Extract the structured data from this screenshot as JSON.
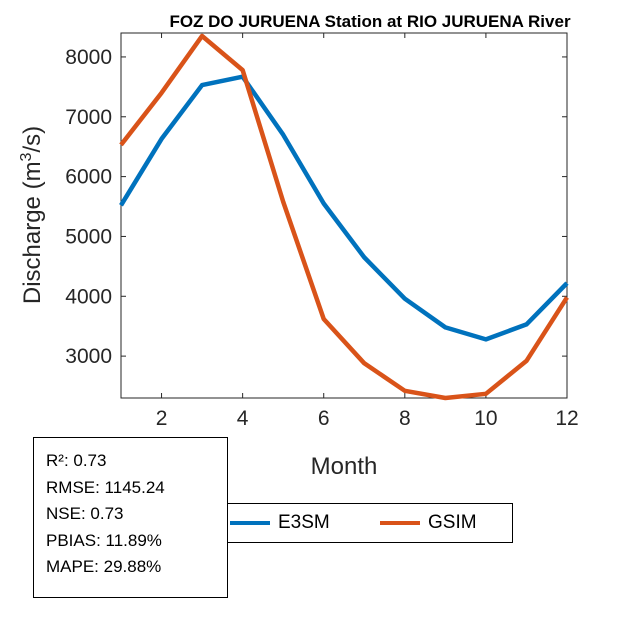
{
  "chart_data": {
    "type": "line",
    "title": "FOZ DO JURUENA  Station at  RIO JURUENA  River",
    "xlabel": "Month",
    "ylabel": "Discharge (m³/s)",
    "ylabel_parts": {
      "pre": "Discharge (m",
      "sup": "3",
      "post": "/s)"
    },
    "xlim": [
      1,
      12
    ],
    "ylim": [
      2300,
      8400
    ],
    "xticks": [
      2,
      4,
      6,
      8,
      10,
      12
    ],
    "yticks": [
      3000,
      4000,
      5000,
      6000,
      7000,
      8000
    ],
    "grid": false,
    "x": [
      1,
      2,
      3,
      4,
      5,
      6,
      7,
      8,
      9,
      10,
      11,
      12
    ],
    "series": [
      {
        "name": "E3SM",
        "color": "#0072BD",
        "values": [
          5520,
          6630,
          7530,
          7670,
          6700,
          5550,
          4650,
          3960,
          3480,
          3280,
          3530,
          4220
        ]
      },
      {
        "name": "GSIM",
        "color": "#D95319",
        "values": [
          6530,
          7400,
          8350,
          7780,
          5580,
          3620,
          2880,
          2420,
          2300,
          2370,
          2920,
          3980
        ]
      }
    ],
    "legend_position": "bottom-outside"
  },
  "stats": [
    "R²: 0.73",
    "RMSE: 1145.24",
    "NSE: 0.73",
    "PBIAS: 11.89%",
    "MAPE: 29.88%"
  ]
}
